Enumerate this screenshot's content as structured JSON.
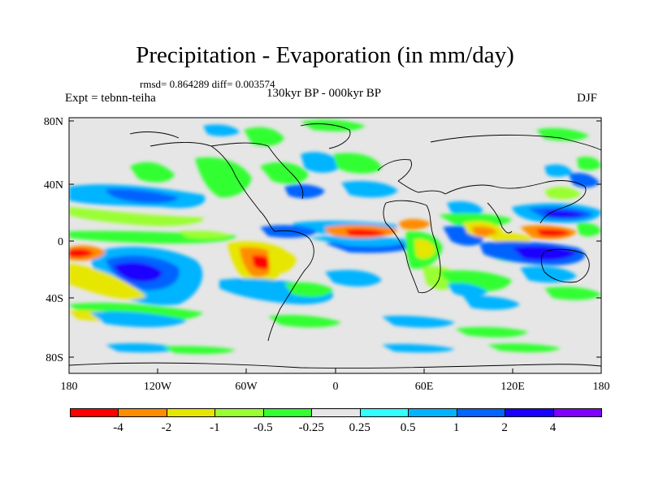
{
  "title": "Precipitation - Evaporation (in mm/day)",
  "stats": "rmsd= 0.864289 diff= 0.003574",
  "experiment": "Expt = tebnn-teiha",
  "period": "130kyr BP - 000kyr BP",
  "season": "DJF",
  "lat_ticks": [
    "80N",
    "40N",
    "0",
    "40S",
    "80S"
  ],
  "lon_ticks": [
    "180",
    "120W",
    "60W",
    "0",
    "60E",
    "120E",
    "180"
  ],
  "legend": {
    "colors": [
      "#ff0000",
      "#ff8c00",
      "#e6e600",
      "#99ff33",
      "#33ff33",
      "#e6e6e6",
      "#33ffff",
      "#00b4ff",
      "#0064ff",
      "#1a00ff",
      "#8000ff"
    ],
    "labels": [
      "-4",
      "-2",
      "-1",
      "-0.5",
      "-0.25",
      "0.25",
      "0.5",
      "1",
      "2",
      "4"
    ]
  }
}
